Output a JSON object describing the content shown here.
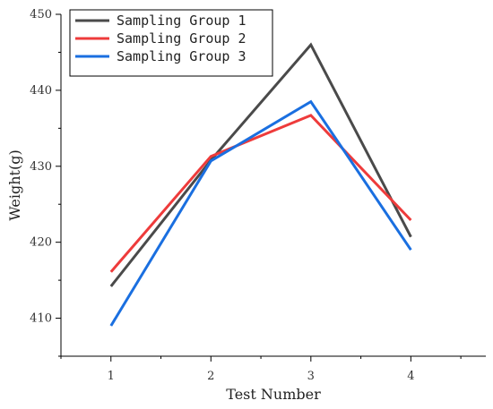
{
  "chart_data": {
    "type": "line",
    "title": "",
    "xlabel": "Test Number",
    "ylabel": "Weight(g)",
    "x": [
      1,
      2,
      3,
      4
    ],
    "xticks": [
      "1",
      "2",
      "3",
      "4"
    ],
    "yticks": [
      "410",
      "420",
      "430",
      "440",
      "450"
    ],
    "xlim": [
      0.5,
      4.75
    ],
    "ylim": [
      405,
      450
    ],
    "grid": false,
    "legend_position": "top-left",
    "series": [
      {
        "name": "Sampling Group 1",
        "color": "#4a4a4a",
        "values": [
          414.2,
          430.8,
          446.0,
          420.7
        ]
      },
      {
        "name": "Sampling Group 2",
        "color": "#ee3b3b",
        "values": [
          416.1,
          431.3,
          436.7,
          422.9
        ]
      },
      {
        "name": "Sampling Group 3",
        "color": "#1a6fe0",
        "values": [
          409.0,
          430.7,
          438.5,
          419.0
        ]
      }
    ]
  }
}
